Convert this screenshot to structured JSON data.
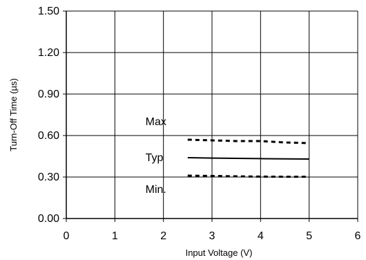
{
  "chart_data": {
    "type": "line",
    "title": "",
    "xlabel": "Input Voltage (V)",
    "ylabel": "Turn-Off Time (µs)",
    "xlim": [
      0,
      6
    ],
    "ylim": [
      0,
      1.5
    ],
    "x_ticks": [
      "0",
      "1",
      "2",
      "3",
      "4",
      "5",
      "6"
    ],
    "y_ticks": [
      "0.00",
      "0.30",
      "0.60",
      "0.90",
      "1.20",
      "1.50"
    ],
    "grid": true,
    "legend": "none",
    "annotations": [
      "Max",
      "Typ",
      "Min."
    ],
    "series": [
      {
        "name": "Max",
        "style": "dashed",
        "color": "#000000",
        "x": [
          2.5,
          3,
          3.5,
          4,
          4.5,
          5
        ],
        "y": [
          0.57,
          0.565,
          0.56,
          0.56,
          0.55,
          0.545
        ]
      },
      {
        "name": "Typ",
        "style": "solid",
        "color": "#000000",
        "x": [
          2.5,
          3,
          3.5,
          4,
          4.5,
          5
        ],
        "y": [
          0.44,
          0.437,
          0.435,
          0.433,
          0.431,
          0.43
        ]
      },
      {
        "name": "Min.",
        "style": "dashed",
        "color": "#000000",
        "x": [
          2.5,
          3,
          3.5,
          4,
          4.5,
          5
        ],
        "y": [
          0.31,
          0.308,
          0.305,
          0.303,
          0.302,
          0.302
        ]
      }
    ]
  }
}
